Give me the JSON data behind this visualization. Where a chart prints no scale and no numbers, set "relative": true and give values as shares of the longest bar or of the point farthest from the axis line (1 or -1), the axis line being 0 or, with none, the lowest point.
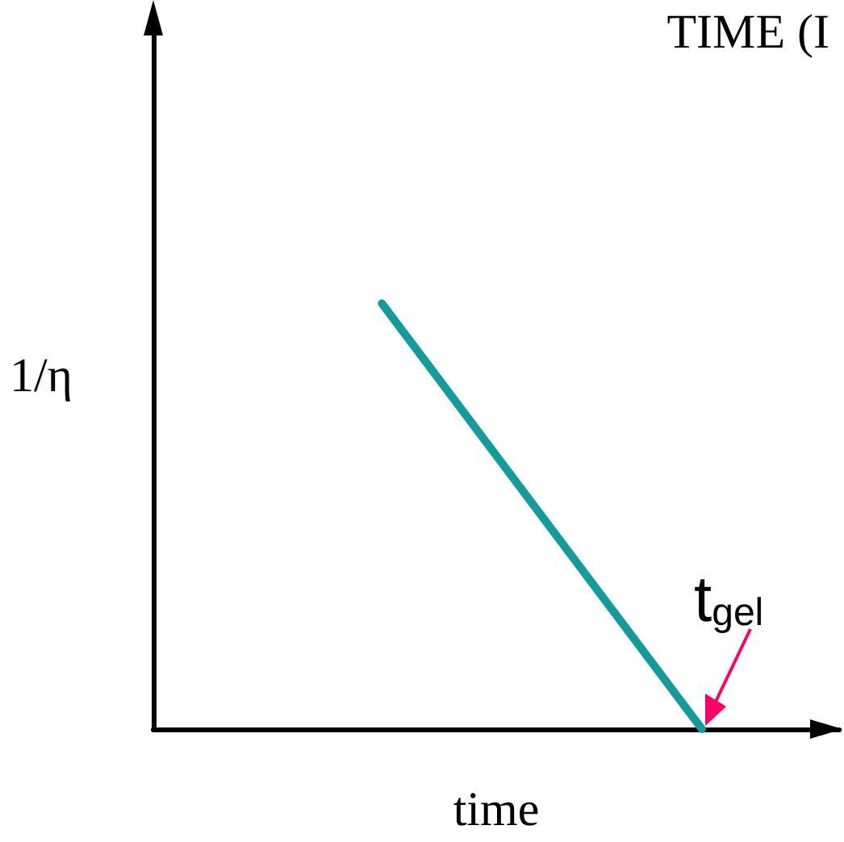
{
  "chart_data": {
    "type": "line",
    "title": "TIME (I",
    "xlabel": "time",
    "ylabel": "1/η",
    "relative": true,
    "categories": [
      null,
      null,
      null,
      null,
      null,
      null,
      null,
      null,
      null,
      null,
      null,
      null,
      null,
      null,
      null,
      null
    ],
    "series": [
      {
        "color": "#149c9c",
        "values": [
          null,
          null,
          null,
          null,
          null,
          1,
          null,
          null,
          null,
          null,
          null,
          null,
          0,
          null,
          null,
          null
        ]
      }
    ],
    "annotations": [
      "t$_{gel}$"
    ],
    "marker": "none"
  }
}
